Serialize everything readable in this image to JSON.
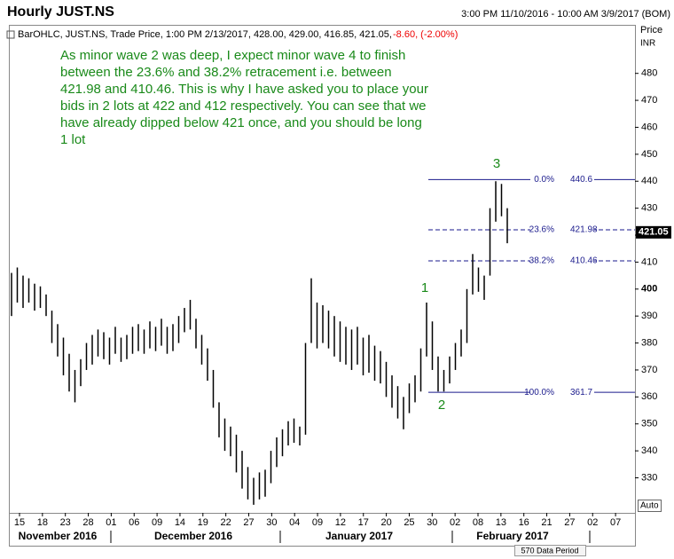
{
  "chart_data": {
    "type": "ohlc",
    "title": "Hourly JUST.NS",
    "period": "3:00 PM 11/10/2016 - 10:00 AM 3/9/2017 (BOM)",
    "legend_text": "BarOHLC, JUST.NS, Trade Price, 1:00 PM 2/13/2017, 428.00, 429.00, 416.85, 421.05,",
    "legend_change": "-8.60, (-2.00%)",
    "axis_title": "Price",
    "axis_unit": "INR",
    "annotation": [
      "As minor wave 2 was deep, I expect minor wave 4 to finish",
      "between the 23.6% and 38.2% retracement i.e. between",
      "421.98 and 410.46. This is why I have asked you to place your",
      "bids in 2 lots at 422 and 412 respectively. You can see that we",
      "have already dipped below 421 once, and you should be long",
      "1 lot"
    ],
    "wave_labels": [
      "1",
      "2",
      "3"
    ],
    "categories": [
      "15",
      "18",
      "23",
      "28",
      "01",
      "06",
      "09",
      "14",
      "19",
      "22",
      "27",
      "30",
      "04",
      "09",
      "12",
      "17",
      "20",
      "25",
      "30",
      "02",
      "08",
      "13",
      "16",
      "21",
      "27",
      "02",
      "07"
    ],
    "months": [
      "November 2016",
      "December 2016",
      "January 2017",
      "February 2017"
    ],
    "color": "#000000",
    "low": [
      390,
      395,
      393,
      395,
      392,
      393,
      390,
      380,
      375,
      368,
      362,
      358,
      364,
      370,
      372,
      375,
      374,
      372,
      376,
      373,
      374,
      376,
      377,
      376,
      378,
      377,
      379,
      376,
      377,
      380,
      384,
      385,
      378,
      372,
      366,
      356,
      345,
      340,
      338,
      332,
      326,
      322,
      320,
      322,
      323,
      328,
      334,
      338,
      342,
      343,
      342,
      346,
      380,
      378,
      380,
      378,
      375,
      373,
      372,
      370,
      372,
      368,
      369,
      366,
      365,
      360,
      356,
      352,
      348,
      354,
      358,
      362,
      375,
      370,
      362,
      362,
      365,
      370,
      375,
      380,
      398,
      399,
      396,
      405,
      425,
      427,
      417
    ],
    "high": [
      406,
      408,
      405,
      404,
      402,
      401,
      398,
      392,
      387,
      382,
      376,
      370,
      374,
      380,
      383,
      385,
      384,
      382,
      386,
      382,
      383,
      386,
      387,
      385,
      388,
      386,
      389,
      386,
      387,
      390,
      393,
      396,
      389,
      383,
      378,
      370,
      358,
      352,
      349,
      346,
      340,
      334,
      330,
      332,
      333,
      340,
      345,
      348,
      351,
      352,
      349,
      380,
      404,
      395,
      394,
      392,
      390,
      388,
      386,
      385,
      386,
      382,
      383,
      379,
      377,
      373,
      368,
      364,
      360,
      365,
      368,
      378,
      395,
      388,
      375,
      370,
      375,
      380,
      385,
      400,
      413,
      408,
      405,
      430,
      440,
      439,
      430
    ],
    "fib_color": "#1a1a8c",
    "fib_levels": [
      {
        "label": "0.0%",
        "value": 440.6,
        "dashed": false
      },
      {
        "label": "23.6%",
        "value": 421.98,
        "dashed": true
      },
      {
        "label": "38.2%",
        "value": 410.46,
        "dashed": true
      },
      {
        "label": "100.0%",
        "value": 361.7,
        "dashed": false
      }
    ],
    "last_price": 421.05,
    "ylim": [
      317,
      498
    ],
    "yticks": [
      330,
      340,
      350,
      360,
      370,
      380,
      390,
      400,
      410,
      420,
      430,
      440,
      450,
      460,
      470,
      480
    ],
    "footer": "570 Data Period",
    "scale_mode": "Auto"
  }
}
